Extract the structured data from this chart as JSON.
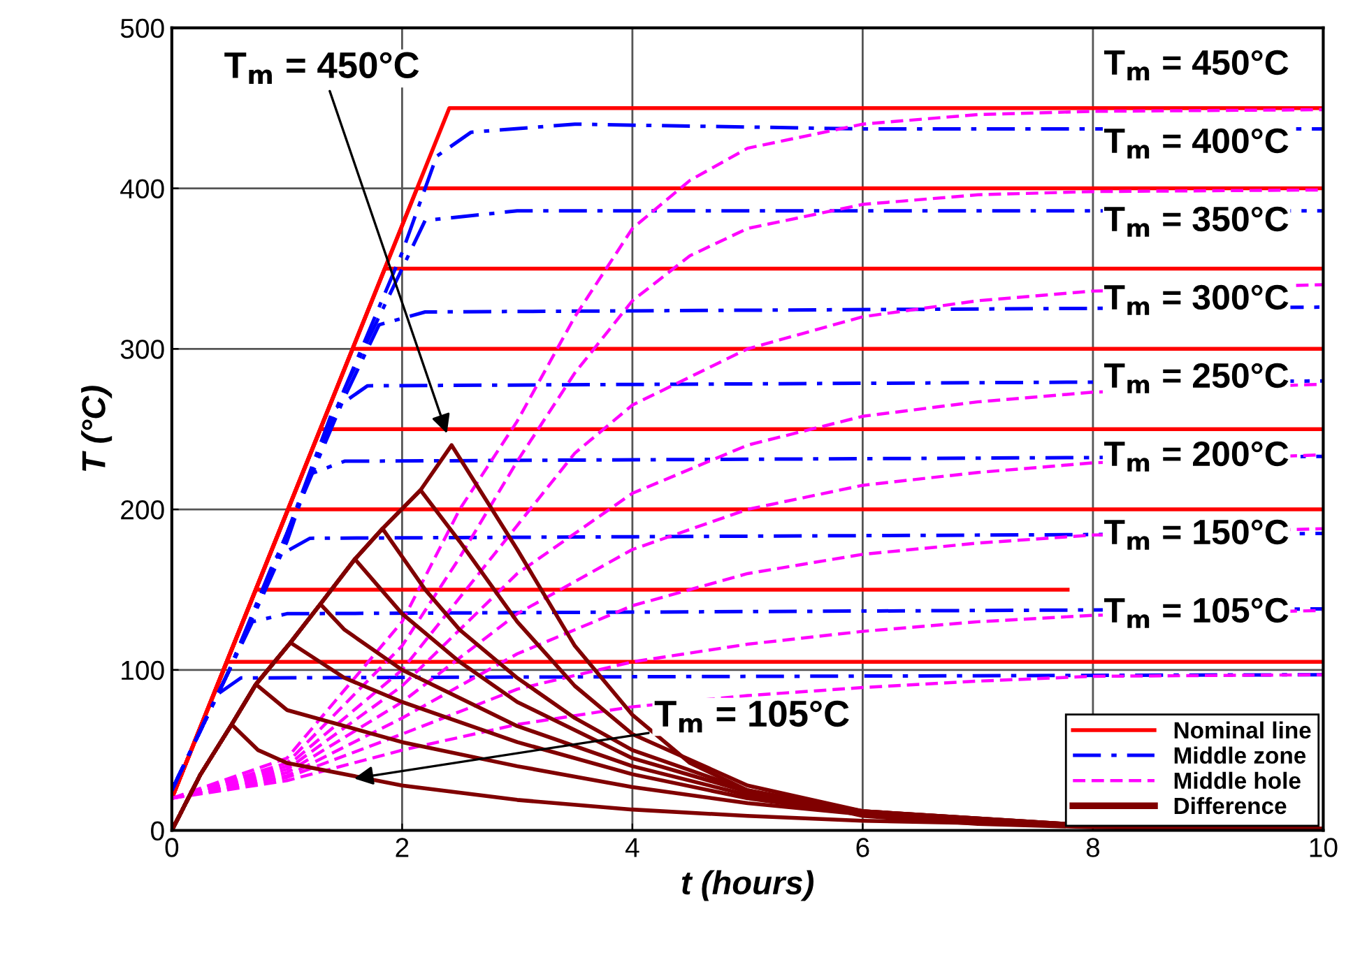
{
  "chart_data": {
    "type": "line",
    "xlabel": "t (hours)",
    "ylabel": "T (°C)",
    "xlim": [
      0,
      10
    ],
    "xticks": [
      0,
      2,
      4,
      6,
      8,
      10
    ],
    "ylim": [
      0,
      500
    ],
    "yticks": [
      0,
      100,
      200,
      300,
      400,
      500
    ],
    "grid": true,
    "legend": "bottom right",
    "annotations": [
      {
        "text": "T$_{m}$ = 450°C",
        "x": 2.4,
        "y": 245
      },
      {
        "text": "T$_{m}$ = 105°C",
        "x": 1.55,
        "y": 32
      },
      "T$_{m}$ = 450°C",
      "T$_{m}$ = 400°C",
      "T$_{m}$ = 350°C",
      "T$_{m}$ = 300°C",
      "T$_{m}$ = 250°C",
      "T$_{m}$ = 200°C",
      "T$_{m}$ = 150°C",
      "T$_{m}$ = 105°C"
    ],
    "series": [
      {
        "name": "Nominal line",
        "color": "#ff0000",
        "line_style": "solid",
        "x": [
          0,
          2.41,
          10
        ],
        "values": [
          20,
          450,
          450
        ]
      },
      {
        "color": "#ff0000",
        "line_style": "solid",
        "x": [
          0,
          2.13,
          10
        ],
        "values": [
          20,
          400,
          400
        ]
      },
      {
        "color": "#ff0000",
        "line_style": "solid",
        "x": [
          0,
          1.85,
          10
        ],
        "values": [
          20,
          350,
          350
        ]
      },
      {
        "color": "#ff0000",
        "line_style": "solid",
        "x": [
          0,
          1.57,
          10
        ],
        "values": [
          20,
          300,
          300
        ]
      },
      {
        "color": "#ff0000",
        "line_style": "solid",
        "x": [
          0,
          1.29,
          10
        ],
        "values": [
          20,
          250,
          250
        ]
      },
      {
        "color": "#ff0000",
        "line_style": "solid",
        "x": [
          0,
          1.01,
          10
        ],
        "values": [
          20,
          200,
          200
        ]
      },
      {
        "color": "#ff0000",
        "line_style": "solid",
        "x": [
          0,
          0.73,
          7.78
        ],
        "values": [
          20,
          150,
          150
        ]
      },
      {
        "color": "#ff0000",
        "line_style": "solid",
        "x": [
          0,
          0.48,
          10
        ],
        "values": [
          20,
          105,
          105
        ]
      },
      {
        "name": "Middle zone",
        "color": "#0000ff",
        "line_style": "dashdot",
        "x": [
          0,
          0.5,
          1,
          1.5,
          2,
          2.3,
          2.6,
          3.5,
          6,
          10
        ],
        "values": [
          25,
          100,
          185,
          275,
          360,
          420,
          435,
          440,
          437,
          437
        ]
      },
      {
        "color": "#0000ff",
        "line_style": "dashdot",
        "x": [
          0,
          0.5,
          1,
          1.5,
          2,
          2.2,
          3,
          10
        ],
        "values": [
          25,
          100,
          185,
          275,
          350,
          380,
          386,
          386
        ]
      },
      {
        "color": "#0000ff",
        "line_style": "dashdot",
        "x": [
          0,
          0.5,
          1,
          1.5,
          1.8,
          2.2,
          10
        ],
        "values": [
          25,
          100,
          185,
          270,
          315,
          323,
          326
        ]
      },
      {
        "color": "#0000ff",
        "line_style": "dashdot",
        "x": [
          0,
          0.5,
          1,
          1.4,
          1.7,
          10
        ],
        "values": [
          25,
          100,
          185,
          262,
          277,
          280
        ]
      },
      {
        "color": "#0000ff",
        "line_style": "dashdot",
        "x": [
          0,
          0.5,
          1,
          1.2,
          1.5,
          10
        ],
        "values": [
          25,
          100,
          180,
          222,
          230,
          233
        ]
      },
      {
        "color": "#0000ff",
        "line_style": "dashdot",
        "x": [
          0,
          0.5,
          0.9,
          1.2,
          10
        ],
        "values": [
          25,
          100,
          170,
          182,
          185
        ]
      },
      {
        "color": "#0000ff",
        "line_style": "dashdot",
        "x": [
          0,
          0.5,
          0.7,
          1,
          10
        ],
        "values": [
          25,
          100,
          130,
          135,
          138
        ]
      },
      {
        "color": "#0000ff",
        "line_style": "dashdot",
        "x": [
          0,
          0.4,
          0.6,
          10
        ],
        "values": [
          25,
          85,
          95,
          97
        ]
      },
      {
        "name": "Middle hole",
        "color": "#ff00ff",
        "line_style": "dashed",
        "x": [
          0,
          1,
          2,
          2.5,
          3,
          3.5,
          4,
          4.5,
          5,
          6,
          7,
          8,
          10
        ],
        "values": [
          20,
          45,
          130,
          200,
          255,
          320,
          375,
          405,
          425,
          440,
          446,
          448,
          449
        ]
      },
      {
        "color": "#ff00ff",
        "line_style": "dashed",
        "x": [
          0,
          1,
          2,
          2.5,
          3,
          3.5,
          4,
          4.5,
          5,
          6,
          7,
          8,
          10
        ],
        "values": [
          20,
          42,
          115,
          170,
          230,
          285,
          330,
          358,
          375,
          390,
          396,
          398,
          399
        ]
      },
      {
        "color": "#ff00ff",
        "line_style": "dashed",
        "x": [
          0,
          1,
          2,
          2.5,
          3,
          3.5,
          4,
          5,
          6,
          7,
          8,
          10
        ],
        "values": [
          20,
          40,
          100,
          145,
          190,
          235,
          265,
          300,
          320,
          330,
          336,
          340
        ]
      },
      {
        "color": "#ff00ff",
        "line_style": "dashed",
        "x": [
          0,
          1,
          2,
          3,
          4,
          5,
          6,
          7,
          8,
          10
        ],
        "values": [
          20,
          38,
          90,
          160,
          210,
          240,
          258,
          267,
          273,
          278
        ]
      },
      {
        "color": "#ff00ff",
        "line_style": "dashed",
        "x": [
          0,
          1,
          2,
          3,
          4,
          5,
          6,
          7,
          8,
          10
        ],
        "values": [
          20,
          36,
          80,
          135,
          175,
          200,
          215,
          223,
          229,
          234
        ]
      },
      {
        "color": "#ff00ff",
        "line_style": "dashed",
        "x": [
          0,
          1,
          2,
          3,
          4,
          5,
          6,
          7,
          8,
          10
        ],
        "values": [
          20,
          34,
          70,
          110,
          140,
          160,
          172,
          179,
          184,
          188
        ]
      },
      {
        "color": "#ff00ff",
        "line_style": "dashed",
        "x": [
          0,
          1,
          2,
          3,
          4,
          5,
          6,
          7,
          8,
          10
        ],
        "values": [
          20,
          33,
          60,
          88,
          105,
          116,
          124,
          130,
          134,
          137
        ]
      },
      {
        "color": "#ff00ff",
        "line_style": "dashed",
        "x": [
          0,
          1,
          2,
          3,
          4,
          5,
          6,
          7,
          8,
          10
        ],
        "values": [
          20,
          31,
          50,
          66,
          77,
          84,
          89,
          93,
          96,
          97
        ]
      },
      {
        "name": "Difference",
        "color": "#800000",
        "line_style": "solid",
        "x": [
          0,
          0.25,
          0.52,
          0.73,
          1.03,
          1.29,
          1.59,
          1.83,
          2.16,
          2.43,
          3,
          3.5,
          4,
          4.5,
          5,
          6,
          7,
          8,
          10
        ],
        "values": [
          0,
          35,
          66,
          91,
          117,
          141,
          169,
          188,
          212,
          240,
          175,
          115,
          72,
          42,
          25,
          9,
          4,
          2,
          1
        ]
      },
      {
        "color": "#800000",
        "line_style": "solid",
        "x": [
          0,
          0.25,
          0.52,
          0.73,
          1.03,
          1.29,
          1.59,
          1.83,
          2.16,
          2.5,
          3,
          3.5,
          4,
          5,
          6,
          8,
          10
        ],
        "values": [
          0,
          35,
          66,
          91,
          117,
          141,
          169,
          188,
          212,
          180,
          130,
          90,
          60,
          28,
          12,
          3,
          1
        ]
      },
      {
        "color": "#800000",
        "line_style": "solid",
        "x": [
          0,
          0.25,
          0.52,
          0.73,
          1.03,
          1.29,
          1.59,
          1.83,
          2.2,
          2.5,
          3,
          3.5,
          4,
          5,
          6,
          8,
          10
        ],
        "values": [
          0,
          35,
          66,
          91,
          117,
          141,
          169,
          188,
          150,
          125,
          95,
          70,
          50,
          25,
          12,
          3,
          1
        ]
      },
      {
        "color": "#800000",
        "line_style": "solid",
        "x": [
          0,
          0.25,
          0.52,
          0.73,
          1.03,
          1.29,
          1.59,
          2,
          2.5,
          3,
          4,
          5,
          6,
          8,
          10
        ],
        "values": [
          0,
          35,
          66,
          91,
          117,
          141,
          169,
          135,
          105,
          80,
          45,
          24,
          12,
          3,
          1
        ]
      },
      {
        "color": "#800000",
        "line_style": "solid",
        "x": [
          0,
          0.25,
          0.52,
          0.73,
          1.03,
          1.29,
          1.5,
          2,
          3,
          4,
          5,
          6,
          8,
          10
        ],
        "values": [
          0,
          35,
          66,
          91,
          117,
          141,
          125,
          100,
          65,
          40,
          22,
          11,
          3,
          1
        ]
      },
      {
        "color": "#800000",
        "line_style": "solid",
        "x": [
          0,
          0.25,
          0.52,
          0.73,
          1.03,
          1.5,
          2,
          3,
          4,
          5,
          6,
          8,
          10
        ],
        "values": [
          0,
          35,
          66,
          91,
          117,
          95,
          80,
          55,
          35,
          20,
          10,
          3,
          1
        ]
      },
      {
        "color": "#800000",
        "line_style": "solid",
        "x": [
          0,
          0.25,
          0.52,
          0.73,
          1,
          2,
          3,
          4,
          5,
          6,
          8,
          10
        ],
        "values": [
          0,
          35,
          66,
          91,
          75,
          55,
          40,
          27,
          17,
          10,
          3,
          1
        ]
      },
      {
        "color": "#800000",
        "line_style": "solid",
        "x": [
          0,
          0.25,
          0.52,
          0.75,
          1,
          2,
          3,
          4,
          5,
          6,
          8,
          10
        ],
        "values": [
          0,
          35,
          66,
          50,
          42,
          28,
          19,
          13,
          9,
          6,
          3,
          1
        ]
      }
    ]
  }
}
